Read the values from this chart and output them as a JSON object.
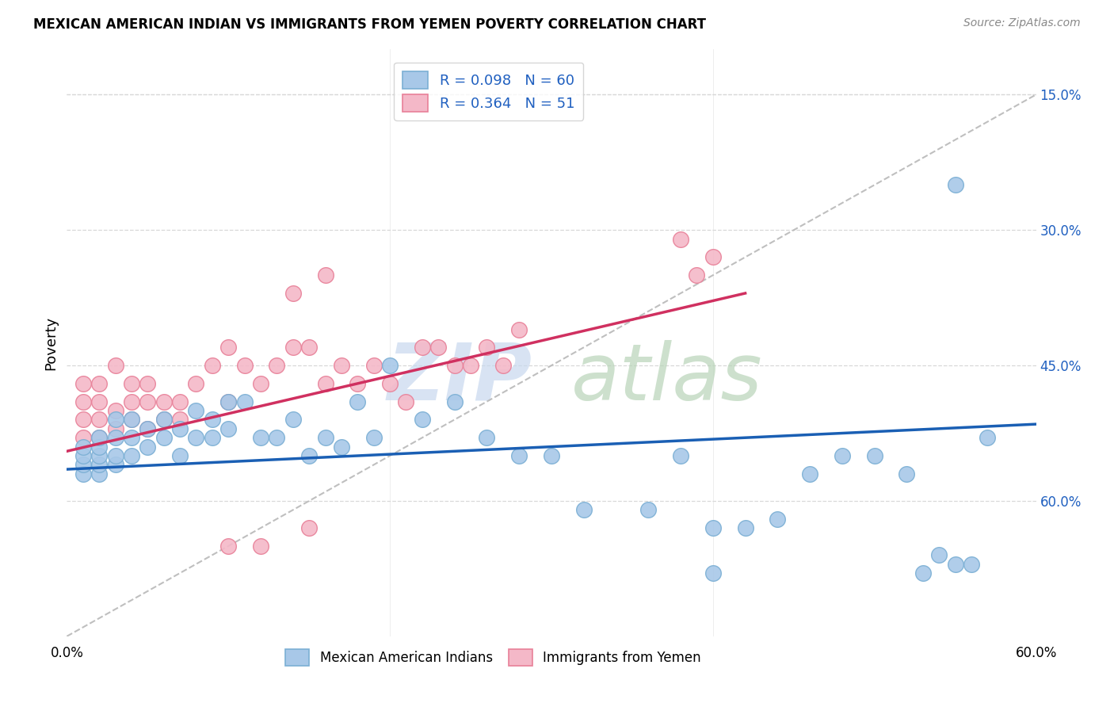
{
  "title": "MEXICAN AMERICAN INDIAN VS IMMIGRANTS FROM YEMEN POVERTY CORRELATION CHART",
  "source": "Source: ZipAtlas.com",
  "ylabel": "Poverty",
  "right_yticks": [
    "60.0%",
    "45.0%",
    "30.0%",
    "15.0%"
  ],
  "right_ytick_vals": [
    0.6,
    0.45,
    0.3,
    0.15
  ],
  "xlim": [
    0.0,
    0.6
  ],
  "ylim": [
    0.0,
    0.65
  ],
  "blue_scatter_color": "#a8c8e8",
  "blue_edge_color": "#7bafd4",
  "pink_scatter_color": "#f4b8c8",
  "pink_edge_color": "#e88098",
  "blue_line_color": "#1a5fb4",
  "pink_line_color": "#d03060",
  "diagonal_color": "#b8b8b8",
  "grid_color": "#d8d8d8",
  "legend_text_color": "#2060c0",
  "watermark_zip_color": "#c8d8ee",
  "watermark_atlas_color": "#b8d4b8",
  "blue_scatter_x": [
    0.01,
    0.01,
    0.01,
    0.01,
    0.02,
    0.02,
    0.02,
    0.02,
    0.02,
    0.03,
    0.03,
    0.03,
    0.03,
    0.04,
    0.04,
    0.04,
    0.05,
    0.05,
    0.06,
    0.06,
    0.07,
    0.07,
    0.08,
    0.08,
    0.09,
    0.09,
    0.1,
    0.1,
    0.11,
    0.12,
    0.13,
    0.14,
    0.15,
    0.16,
    0.17,
    0.18,
    0.19,
    0.2,
    0.22,
    0.24,
    0.26,
    0.28,
    0.3,
    0.32,
    0.36,
    0.38,
    0.4,
    0.42,
    0.44,
    0.46,
    0.48,
    0.5,
    0.52,
    0.53,
    0.54,
    0.55,
    0.56,
    0.57,
    0.4,
    0.55
  ],
  "blue_scatter_y": [
    0.18,
    0.19,
    0.2,
    0.21,
    0.18,
    0.19,
    0.2,
    0.21,
    0.22,
    0.19,
    0.2,
    0.22,
    0.24,
    0.2,
    0.22,
    0.24,
    0.21,
    0.23,
    0.22,
    0.24,
    0.2,
    0.23,
    0.22,
    0.25,
    0.22,
    0.24,
    0.23,
    0.26,
    0.26,
    0.22,
    0.22,
    0.24,
    0.2,
    0.22,
    0.21,
    0.26,
    0.22,
    0.3,
    0.24,
    0.26,
    0.22,
    0.2,
    0.2,
    0.14,
    0.14,
    0.2,
    0.12,
    0.12,
    0.13,
    0.18,
    0.2,
    0.2,
    0.18,
    0.07,
    0.09,
    0.08,
    0.08,
    0.22,
    0.07,
    0.5
  ],
  "pink_scatter_x": [
    0.01,
    0.01,
    0.01,
    0.01,
    0.02,
    0.02,
    0.02,
    0.02,
    0.03,
    0.03,
    0.03,
    0.04,
    0.04,
    0.04,
    0.05,
    0.05,
    0.05,
    0.06,
    0.06,
    0.07,
    0.07,
    0.08,
    0.09,
    0.1,
    0.1,
    0.11,
    0.12,
    0.13,
    0.14,
    0.15,
    0.16,
    0.17,
    0.18,
    0.19,
    0.2,
    0.21,
    0.22,
    0.23,
    0.24,
    0.25,
    0.26,
    0.27,
    0.28,
    0.14,
    0.16,
    0.38,
    0.39,
    0.4,
    0.1,
    0.12,
    0.15
  ],
  "pink_scatter_y": [
    0.22,
    0.24,
    0.26,
    0.28,
    0.22,
    0.24,
    0.26,
    0.28,
    0.23,
    0.25,
    0.3,
    0.24,
    0.26,
    0.28,
    0.23,
    0.26,
    0.28,
    0.24,
    0.26,
    0.24,
    0.26,
    0.28,
    0.3,
    0.26,
    0.32,
    0.3,
    0.28,
    0.3,
    0.32,
    0.32,
    0.28,
    0.3,
    0.28,
    0.3,
    0.28,
    0.26,
    0.32,
    0.32,
    0.3,
    0.3,
    0.32,
    0.3,
    0.34,
    0.38,
    0.4,
    0.44,
    0.4,
    0.42,
    0.1,
    0.1,
    0.12
  ],
  "blue_line_x": [
    0.0,
    0.6
  ],
  "blue_line_y": [
    0.185,
    0.235
  ],
  "pink_line_x": [
    0.0,
    0.42
  ],
  "pink_line_y": [
    0.205,
    0.38
  ]
}
